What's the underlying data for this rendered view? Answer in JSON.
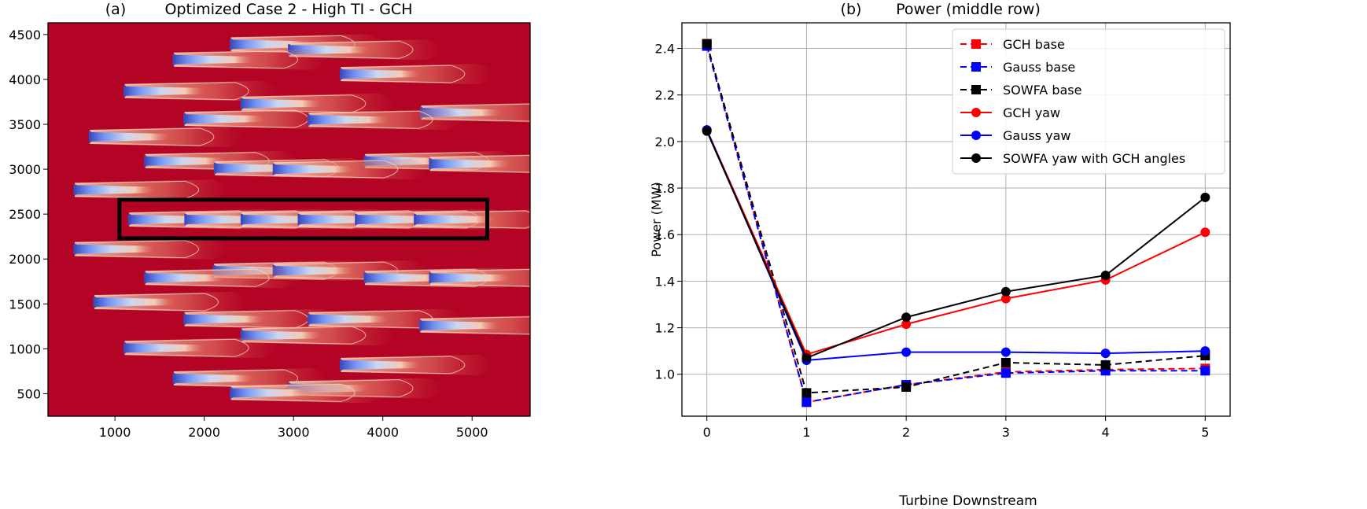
{
  "chart_data": [
    {
      "type": "heatmap",
      "panel_label": "(a)",
      "title": "Optimized Case 2 - High TI - GCH",
      "xlim": [
        250,
        5650
      ],
      "ylim": [
        250,
        4630
      ],
      "x_ticks": [
        1000,
        2000,
        3000,
        4000,
        5000
      ],
      "y_ticks": [
        500,
        1000,
        1500,
        2000,
        2500,
        3000,
        3500,
        4000,
        4500
      ],
      "background_color": "#b40426",
      "wake_colors": [
        "#3b4cc0",
        "#9ebeff",
        "#f2cbb7",
        "#e36c55"
      ],
      "turbines": [
        {
          "x": 2300,
          "y": 4390
        },
        {
          "x": 2950,
          "y": 4330
        },
        {
          "x": 1660,
          "y": 4220
        },
        {
          "x": 3530,
          "y": 4060
        },
        {
          "x": 1110,
          "y": 3870
        },
        {
          "x": 2420,
          "y": 3730
        },
        {
          "x": 4430,
          "y": 3630
        },
        {
          "x": 1780,
          "y": 3560
        },
        {
          "x": 3170,
          "y": 3550
        },
        {
          "x": 720,
          "y": 3360
        },
        {
          "x": 1340,
          "y": 3090
        },
        {
          "x": 3800,
          "y": 3090
        },
        {
          "x": 2120,
          "y": 3010
        },
        {
          "x": 2780,
          "y": 3000
        },
        {
          "x": 4530,
          "y": 3060
        },
        {
          "x": 550,
          "y": 2770
        },
        {
          "x": 1160,
          "y": 2440
        },
        {
          "x": 1790,
          "y": 2440
        },
        {
          "x": 2420,
          "y": 2440
        },
        {
          "x": 3060,
          "y": 2440
        },
        {
          "x": 3700,
          "y": 2440
        },
        {
          "x": 4360,
          "y": 2440
        },
        {
          "x": 550,
          "y": 2110
        },
        {
          "x": 2110,
          "y": 1870
        },
        {
          "x": 2780,
          "y": 1870
        },
        {
          "x": 1340,
          "y": 1790
        },
        {
          "x": 3800,
          "y": 1790
        },
        {
          "x": 4530,
          "y": 1790
        },
        {
          "x": 770,
          "y": 1520
        },
        {
          "x": 1780,
          "y": 1330
        },
        {
          "x": 3170,
          "y": 1330
        },
        {
          "x": 4420,
          "y": 1260
        },
        {
          "x": 2420,
          "y": 1150
        },
        {
          "x": 1110,
          "y": 1010
        },
        {
          "x": 3530,
          "y": 820
        },
        {
          "x": 1660,
          "y": 670
        },
        {
          "x": 2950,
          "y": 560
        },
        {
          "x": 2300,
          "y": 510
        }
      ],
      "highlight_box": {
        "x0": 1050,
        "x1": 5170,
        "y0": 2230,
        "y1": 2660,
        "color": "#000000"
      }
    },
    {
      "type": "line",
      "panel_label": "(b)",
      "title": "Power (middle row)",
      "xlabel": "Turbine Downstream",
      "ylabel": "Power (MW)",
      "xlim": [
        -0.25,
        5.25
      ],
      "ylim": [
        0.82,
        2.51
      ],
      "x_ticks": [
        0,
        1,
        2,
        3,
        4,
        5
      ],
      "y_ticks": [
        1.0,
        1.2,
        1.4,
        1.6,
        1.8,
        2.0,
        2.2,
        2.4
      ],
      "y_tick_labels": [
        "1.0",
        "1.2",
        "1.4",
        "1.6",
        "1.8",
        "2.0",
        "2.2",
        "2.4"
      ],
      "grid": true,
      "legend_position": "top-right",
      "x": [
        0,
        1,
        2,
        3,
        4,
        5
      ],
      "series": [
        {
          "name": "GCH base",
          "color": "#ff0000",
          "dash": true,
          "marker": "square",
          "values": [
            2.42,
            0.88,
            0.955,
            1.01,
            1.02,
            1.025
          ]
        },
        {
          "name": "Gauss base",
          "color": "#0000ff",
          "dash": true,
          "marker": "square",
          "values": [
            2.41,
            0.88,
            0.955,
            1.005,
            1.015,
            1.015
          ]
        },
        {
          "name": "SOWFA base",
          "color": "#000000",
          "dash": true,
          "marker": "square",
          "values": [
            2.42,
            0.92,
            0.945,
            1.05,
            1.04,
            1.08
          ]
        },
        {
          "name": "GCH yaw",
          "color": "#ff0000",
          "dash": false,
          "marker": "circle",
          "values": [
            2.05,
            1.085,
            1.215,
            1.325,
            1.405,
            1.61
          ]
        },
        {
          "name": "Gauss yaw",
          "color": "#0000ff",
          "dash": false,
          "marker": "circle",
          "values": [
            2.05,
            1.06,
            1.095,
            1.095,
            1.09,
            1.1
          ]
        },
        {
          "name": "SOWFA yaw with GCH angles",
          "color": "#000000",
          "dash": false,
          "marker": "circle",
          "values": [
            2.045,
            1.07,
            1.245,
            1.355,
            1.425,
            1.76
          ]
        }
      ]
    }
  ]
}
